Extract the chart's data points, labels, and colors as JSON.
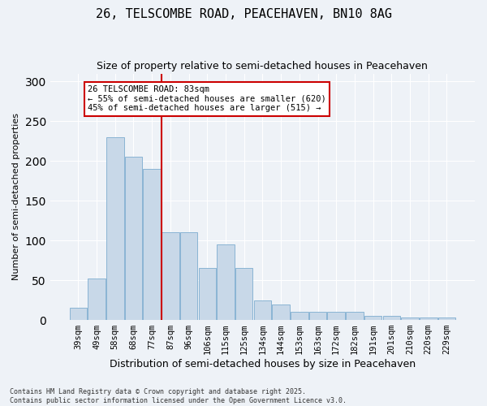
{
  "title1": "26, TELSCOMBE ROAD, PEACEHAVEN, BN10 8AG",
  "title2": "Size of property relative to semi-detached houses in Peacehaven",
  "xlabel": "Distribution of semi-detached houses by size in Peacehaven",
  "ylabel": "Number of semi-detached properties",
  "categories": [
    "39sqm",
    "49sqm",
    "58sqm",
    "68sqm",
    "77sqm",
    "87sqm",
    "96sqm",
    "106sqm",
    "115sqm",
    "125sqm",
    "134sqm",
    "144sqm",
    "153sqm",
    "163sqm",
    "172sqm",
    "182sqm",
    "191sqm",
    "201sqm",
    "210sqm",
    "220sqm",
    "229sqm"
  ],
  "values": [
    15,
    52,
    230,
    205,
    190,
    110,
    110,
    65,
    95,
    65,
    25,
    20,
    10,
    10,
    10,
    10,
    5,
    5,
    3,
    3,
    3
  ],
  "bar_color": "#c8d8e8",
  "bar_edgecolor": "#8ab4d4",
  "background_color": "#eef2f7",
  "grid_color": "#ffffff",
  "vline_color": "#cc0000",
  "vline_index": 4,
  "annotation_text": "26 TELSCOMBE ROAD: 83sqm\n← 55% of semi-detached houses are smaller (620)\n45% of semi-detached houses are larger (515) →",
  "annotation_box_facecolor": "#ffffff",
  "annotation_box_edgecolor": "#cc0000",
  "footer1": "Contains HM Land Registry data © Crown copyright and database right 2025.",
  "footer2": "Contains public sector information licensed under the Open Government Licence v3.0.",
  "ylim": [
    0,
    310
  ],
  "yticks": [
    0,
    50,
    100,
    150,
    200,
    250,
    300
  ]
}
